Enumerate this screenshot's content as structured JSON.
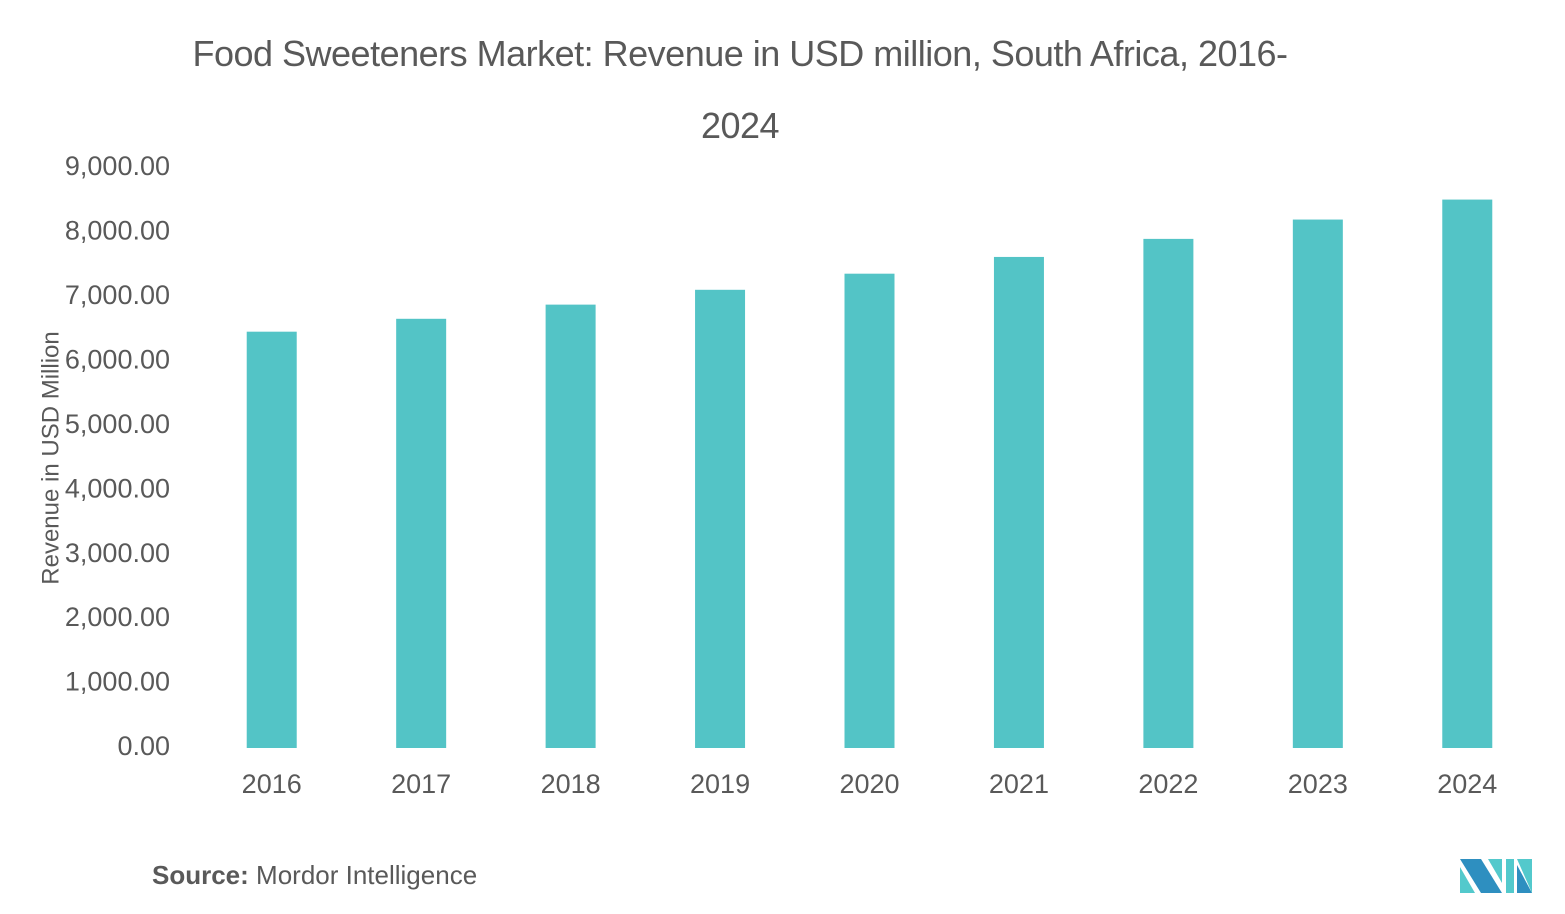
{
  "chart_data": {
    "type": "bar",
    "title": "Food Sweeteners Market: Revenue in USD million, South Africa, 2016-2024",
    "title_lines": [
      "Food Sweeteners Market: Revenue in USD million, South Africa, 2016-",
      "2024"
    ],
    "xlabel": "",
    "ylabel": "Revenue in USD Million",
    "categories": [
      "2016",
      "2017",
      "2018",
      "2019",
      "2020",
      "2021",
      "2022",
      "2023",
      "2024"
    ],
    "values": [
      6460,
      6660,
      6880,
      7110,
      7360,
      7620,
      7900,
      8200,
      8510
    ],
    "ylim": [
      0,
      9000
    ],
    "yticks": [
      0,
      1000,
      2000,
      3000,
      4000,
      5000,
      6000,
      7000,
      8000,
      9000
    ],
    "ytick_labels": [
      "0.00",
      "1,000.00",
      "2,000.00",
      "3,000.00",
      "4,000.00",
      "5,000.00",
      "6,000.00",
      "7,000.00",
      "8,000.00",
      "9,000.00"
    ],
    "grid": false,
    "legend": "none",
    "bar_color": "#53C4C6"
  },
  "source": {
    "label": "Source:",
    "text": " Mordor Intelligence"
  },
  "logo": {
    "name": "mordor-intelligence-logo",
    "colors": [
      "#2E8FC0",
      "#53C9CC"
    ]
  }
}
